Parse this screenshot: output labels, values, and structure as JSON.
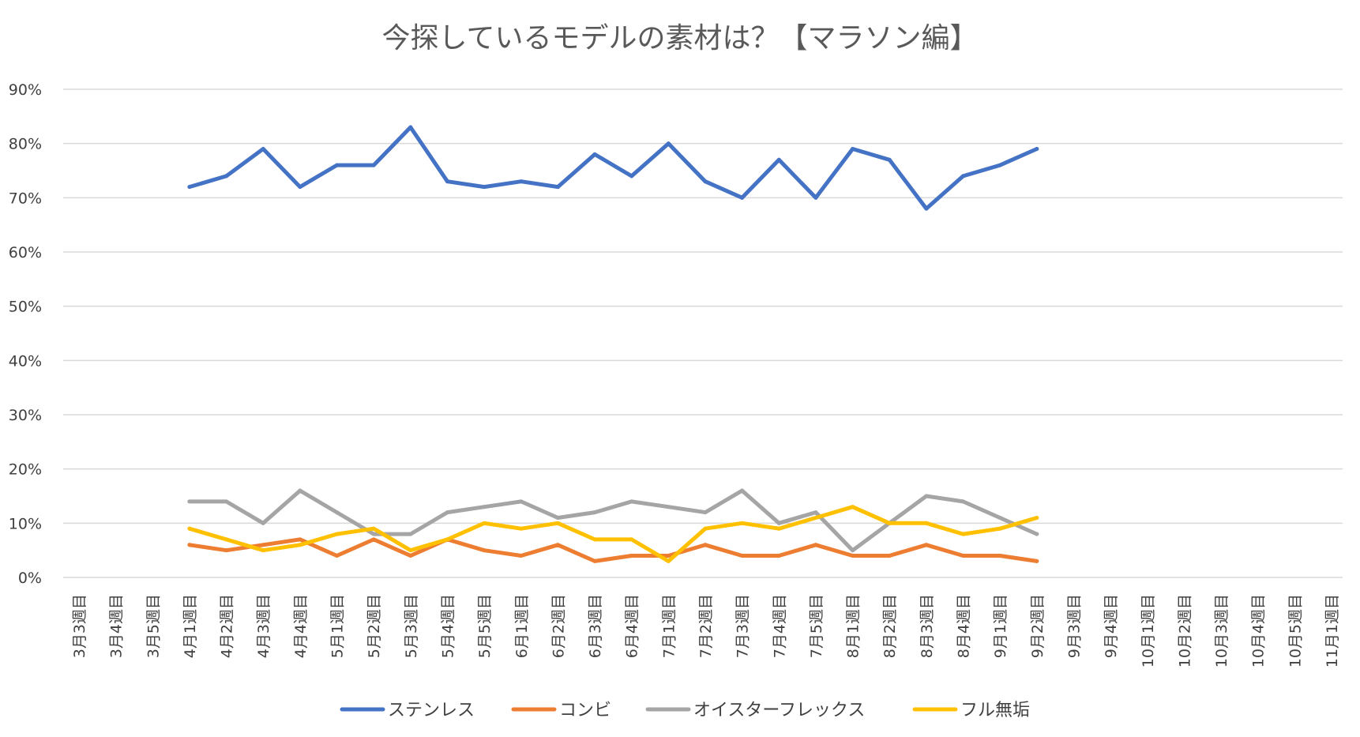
{
  "chart_data": {
    "type": "line",
    "title": "今探しているモデルの素材は？【マラソン編】",
    "xlabel": "",
    "ylabel": "",
    "ylim": [
      0,
      90
    ],
    "yticks": [
      "0%",
      "10%",
      "20%",
      "30%",
      "40%",
      "50%",
      "60%",
      "70%",
      "80%",
      "90%"
    ],
    "grid": true,
    "legend_position": "bottom",
    "categories": [
      "3月3週目",
      "3月4週目",
      "3月5週目",
      "4月1週目",
      "4月2週目",
      "4月3週目",
      "4月4週目",
      "5月1週目",
      "5月2週目",
      "5月3週目",
      "5月4週目",
      "5月5週目",
      "6月1週目",
      "6月2週目",
      "6月3週目",
      "6月4週目",
      "7月1週目",
      "7月2週目",
      "7月3週目",
      "7月4週目",
      "7月5週目",
      "8月1週目",
      "8月2週目",
      "8月3週目",
      "8月4週目",
      "9月1週目",
      "9月2週目",
      "9月3週目",
      "9月4週目",
      "10月1週目",
      "10月2週目",
      "10月3週目",
      "10月4週目",
      "10月5週目",
      "11月1週目"
    ],
    "series": [
      {
        "name": "ステンレス",
        "color": "#4472c4",
        "values": [
          null,
          null,
          null,
          72,
          74,
          79,
          72,
          76,
          76,
          83,
          73,
          72,
          73,
          72,
          78,
          74,
          80,
          73,
          70,
          77,
          70,
          79,
          77,
          68,
          74,
          76,
          79,
          null,
          null,
          null,
          null,
          null,
          null,
          null,
          null
        ]
      },
      {
        "name": "コンビ",
        "color": "#ed7d31",
        "values": [
          null,
          null,
          null,
          6,
          5,
          6,
          7,
          4,
          7,
          4,
          7,
          5,
          4,
          6,
          3,
          4,
          4,
          6,
          4,
          4,
          6,
          4,
          4,
          6,
          4,
          4,
          3,
          null,
          null,
          null,
          null,
          null,
          null,
          null,
          null
        ]
      },
      {
        "name": "オイスターフレックス",
        "color": "#a5a5a5",
        "values": [
          null,
          null,
          null,
          14,
          14,
          10,
          16,
          12,
          8,
          8,
          12,
          13,
          14,
          11,
          12,
          14,
          13,
          12,
          16,
          10,
          12,
          5,
          10,
          15,
          14,
          11,
          8,
          null,
          null,
          null,
          null,
          null,
          null,
          null,
          null
        ]
      },
      {
        "name": "フル無垢",
        "color": "#ffc000",
        "values": [
          null,
          null,
          null,
          9,
          7,
          5,
          6,
          8,
          9,
          5,
          7,
          10,
          9,
          10,
          7,
          7,
          3,
          9,
          10,
          9,
          11,
          13,
          10,
          10,
          8,
          9,
          11,
          null,
          null,
          null,
          null,
          null,
          null,
          null,
          null
        ]
      }
    ]
  }
}
